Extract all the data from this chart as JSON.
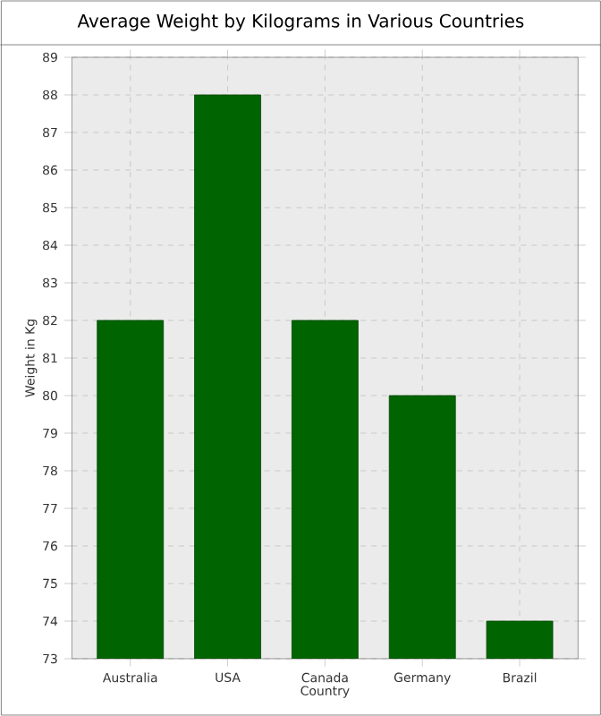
{
  "chart_data": {
    "type": "bar",
    "title": "Average Weight by Kilograms in Various Countries",
    "xlabel": "Country",
    "ylabel": "Weight in Kg",
    "categories": [
      "Australia",
      "USA",
      "Canada",
      "Germany",
      "Brazil"
    ],
    "values": [
      82,
      88,
      82,
      80,
      74
    ],
    "color": "#006400",
    "ylim": [
      73,
      89
    ],
    "yticks": [
      73,
      74,
      75,
      76,
      77,
      78,
      79,
      80,
      81,
      82,
      83,
      84,
      85,
      86,
      87,
      88,
      89
    ],
    "grid": true
  }
}
